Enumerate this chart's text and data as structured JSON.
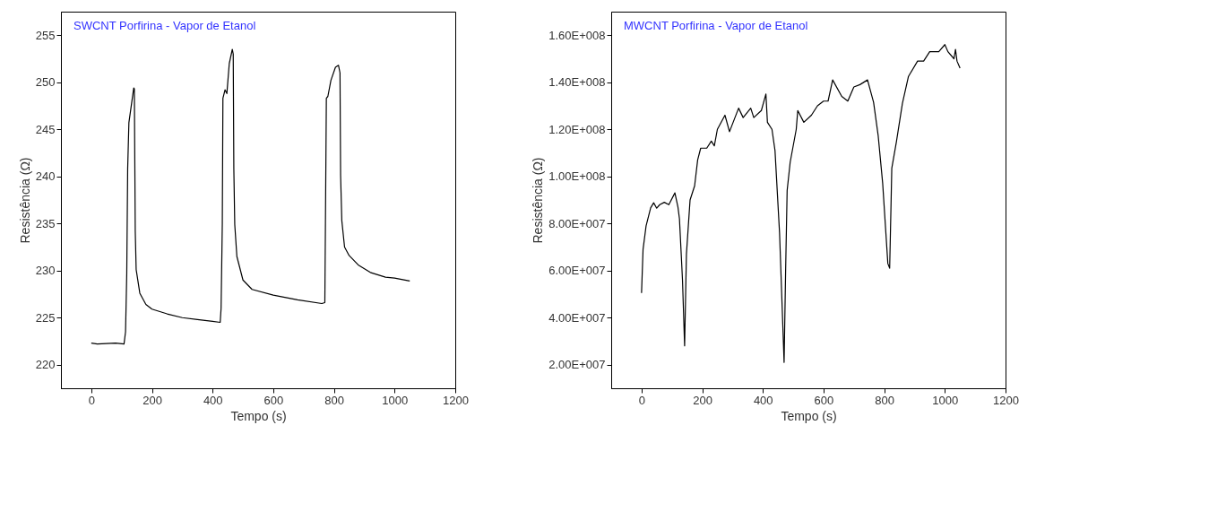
{
  "chart_data": [
    {
      "type": "line",
      "title": "SWCNT Porfirina - Vapor de Etanol",
      "xlabel": "Tempo (s)",
      "ylabel": "Resistência (Ω)",
      "xlim": [
        -100,
        1200
      ],
      "xticks": [
        0,
        200,
        400,
        600,
        800,
        1000,
        1200
      ],
      "ylim": [
        217.5,
        257.5
      ],
      "yticks": [
        220,
        225,
        230,
        235,
        240,
        245,
        250,
        255
      ],
      "grid": false,
      "series": [
        {
          "color": "#000000",
          "x": [
            0,
            20,
            80,
            108,
            113,
            117,
            120,
            124,
            140,
            142,
            145,
            148,
            160,
            180,
            200,
            250,
            300,
            350,
            400,
            425,
            428,
            432,
            434,
            441,
            447,
            455,
            465,
            468,
            470,
            473,
            480,
            500,
            530,
            600,
            680,
            760,
            770,
            772,
            775,
            780,
            790,
            805,
            815,
            820,
            822,
            826,
            835,
            850,
            880,
            920,
            970,
            1000,
            1050
          ],
          "values": [
            222.3,
            222.2,
            222.3,
            222.2,
            223.5,
            229.7,
            240.8,
            245.7,
            249.4,
            249.3,
            234.2,
            230.1,
            227.6,
            226.4,
            225.9,
            225.4,
            225.0,
            224.8,
            224.6,
            224.5,
            226.0,
            235.0,
            248.3,
            249.2,
            248.8,
            252.0,
            253.5,
            253.0,
            240.8,
            234.9,
            231.5,
            229.0,
            228.0,
            227.4,
            226.9,
            226.5,
            226.6,
            235.0,
            248.3,
            248.5,
            250.2,
            251.6,
            251.8,
            251.0,
            240.1,
            235.3,
            232.5,
            231.6,
            230.6,
            229.8,
            229.3,
            229.2,
            228.9
          ]
        }
      ]
    },
    {
      "type": "line",
      "title": "MWCNT Porfirina - Vapor de Etanol",
      "xlabel": "Tempo (s)",
      "ylabel": "Resistência (Ω)",
      "xlim": [
        -100,
        1200
      ],
      "xticks": [
        0,
        200,
        400,
        600,
        800,
        1000,
        1200
      ],
      "ylim": [
        10000000,
        170000000
      ],
      "yticks": [
        {
          "value": 20000000,
          "label": "2.00E+007"
        },
        {
          "value": 40000000,
          "label": "4.00E+007"
        },
        {
          "value": 60000000,
          "label": "6.00E+007"
        },
        {
          "value": 80000000,
          "label": "8.00E+007"
        },
        {
          "value": 100000000,
          "label": "1.00E+008"
        },
        {
          "value": 120000000,
          "label": "1.20E+008"
        },
        {
          "value": 140000000,
          "label": "1.40E+008"
        },
        {
          "value": 160000000,
          "label": "1.60E+008"
        }
      ],
      "grid": false,
      "series": [
        {
          "color": "#000000",
          "x": [
            0,
            5,
            15,
            30,
            40,
            50,
            60,
            75,
            90,
            110,
            120,
            125,
            135,
            142,
            148,
            160,
            175,
            185,
            195,
            215,
            230,
            240,
            250,
            275,
            290,
            320,
            335,
            360,
            370,
            395,
            410,
            415,
            430,
            440,
            455,
            470,
            475,
            480,
            490,
            510,
            515,
            535,
            560,
            580,
            600,
            615,
            630,
            660,
            680,
            700,
            720,
            745,
            765,
            780,
            795,
            812,
            818,
            822,
            825,
            840,
            860,
            880,
            910,
            930,
            950,
            980,
            1000,
            1010,
            1030,
            1035,
            1040,
            1050
          ],
          "values": [
            50500000,
            69000000,
            79000000,
            86600000,
            88800000,
            86500000,
            88000000,
            89000000,
            88000000,
            93000000,
            87000000,
            82000000,
            56000000,
            28000000,
            67000000,
            90000000,
            96000000,
            107000000,
            112000000,
            112000000,
            115000000,
            113000000,
            120000000,
            126000000,
            119000000,
            129000000,
            125000000,
            129000000,
            125000000,
            128000000,
            135000000,
            123000000,
            120000000,
            111000000,
            76000000,
            21000000,
            60000000,
            94000000,
            106000000,
            120000000,
            128000000,
            123000000,
            126000000,
            130000000,
            132000000,
            132000000,
            141000000,
            134000000,
            132000000,
            138000000,
            139000000,
            141000000,
            131500000,
            117500000,
            97000000,
            63000000,
            61000000,
            85000000,
            103500000,
            114500000,
            131000000,
            142500000,
            149000000,
            149000000,
            153000000,
            153000000,
            156000000,
            153000000,
            150000000,
            154000000,
            149000000,
            146000000
          ]
        }
      ]
    }
  ]
}
